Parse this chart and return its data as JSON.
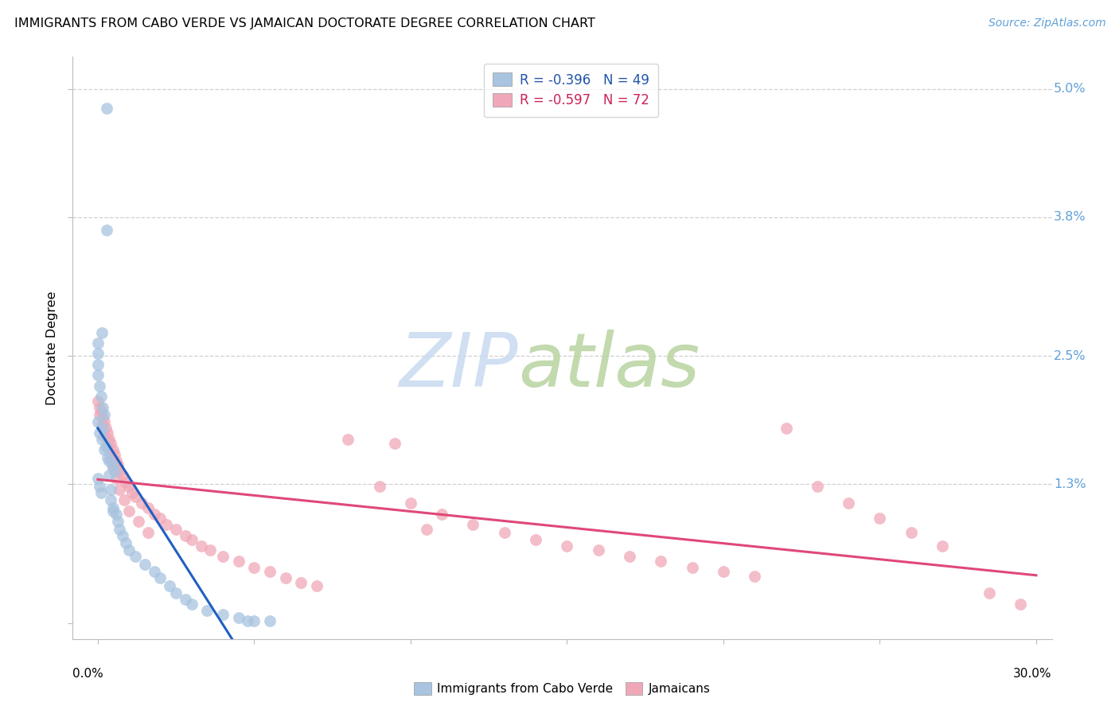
{
  "title": "IMMIGRANTS FROM CABO VERDE VS JAMAICAN DOCTORATE DEGREE CORRELATION CHART",
  "source": "Source: ZipAtlas.com",
  "ylabel": "Doctorate Degree",
  "ytick_values": [
    0.0,
    1.3,
    2.5,
    3.8,
    5.0
  ],
  "ytick_labels_right": [
    "",
    "1.3%",
    "2.5%",
    "3.8%",
    "5.0%"
  ],
  "ymax": 5.3,
  "ymin": -0.15,
  "xmax": 30.5,
  "xmin": -0.8,
  "legend_blue_text": "R = -0.396   N = 49",
  "legend_pink_text": "R = -0.597   N = 72",
  "blue_scatter_color": "#a8c4e0",
  "pink_scatter_color": "#f0a8b8",
  "blue_line_color": "#2060c0",
  "pink_line_color": "#e04878",
  "grid_color": "#d0d0d0",
  "right_label_color": "#60a0d8",
  "cabo_verde_x": [
    0.28,
    0.28,
    0.12,
    0.0,
    0.0,
    0.0,
    0.0,
    0.05,
    0.1,
    0.15,
    0.2,
    0.0,
    0.05,
    0.12,
    0.2,
    0.3,
    0.45,
    0.55,
    0.0,
    0.05,
    0.1,
    0.4,
    0.5,
    0.6,
    0.65,
    0.7,
    0.8,
    0.9,
    1.0,
    1.2,
    1.5,
    1.8,
    2.0,
    2.3,
    2.5,
    2.8,
    3.0,
    3.5,
    4.0,
    4.5,
    4.8,
    5.0,
    5.5,
    0.15,
    0.25,
    0.35,
    0.35,
    0.4,
    0.5
  ],
  "cabo_verde_y": [
    4.82,
    3.68,
    2.72,
    2.62,
    2.52,
    2.42,
    2.32,
    2.22,
    2.12,
    2.02,
    1.95,
    1.88,
    1.78,
    1.72,
    1.62,
    1.55,
    1.48,
    1.42,
    1.35,
    1.28,
    1.22,
    1.15,
    1.08,
    1.02,
    0.95,
    0.88,
    0.82,
    0.75,
    0.68,
    0.62,
    0.55,
    0.48,
    0.42,
    0.35,
    0.28,
    0.22,
    0.18,
    0.12,
    0.08,
    0.05,
    0.02,
    0.02,
    0.02,
    1.82,
    1.65,
    1.52,
    1.38,
    1.25,
    1.05
  ],
  "jamaican_x": [
    0.0,
    0.05,
    0.1,
    0.15,
    0.2,
    0.25,
    0.3,
    0.35,
    0.4,
    0.5,
    0.55,
    0.6,
    0.65,
    0.7,
    0.8,
    0.9,
    1.0,
    1.1,
    1.2,
    1.4,
    1.6,
    1.8,
    2.0,
    2.2,
    2.5,
    2.8,
    3.0,
    3.3,
    3.6,
    4.0,
    4.5,
    5.0,
    5.5,
    6.0,
    6.5,
    7.0,
    0.05,
    0.12,
    0.2,
    0.3,
    0.4,
    0.5,
    0.6,
    0.7,
    0.85,
    1.0,
    1.3,
    1.6,
    8.0,
    9.0,
    10.0,
    11.0,
    12.0,
    13.0,
    14.0,
    15.0,
    16.0,
    17.0,
    18.0,
    19.0,
    20.0,
    21.0,
    22.0,
    23.0,
    24.0,
    25.0,
    26.0,
    27.0,
    28.5,
    29.5,
    9.5,
    10.5
  ],
  "jamaican_y": [
    2.08,
    2.02,
    1.98,
    1.92,
    1.88,
    1.82,
    1.78,
    1.72,
    1.68,
    1.62,
    1.58,
    1.52,
    1.48,
    1.42,
    1.38,
    1.32,
    1.28,
    1.22,
    1.18,
    1.12,
    1.08,
    1.02,
    0.98,
    0.92,
    0.88,
    0.82,
    0.78,
    0.72,
    0.68,
    0.62,
    0.58,
    0.52,
    0.48,
    0.42,
    0.38,
    0.35,
    1.95,
    1.85,
    1.75,
    1.65,
    1.55,
    1.45,
    1.35,
    1.25,
    1.15,
    1.05,
    0.95,
    0.85,
    1.72,
    1.28,
    1.12,
    1.02,
    0.92,
    0.85,
    0.78,
    0.72,
    0.68,
    0.62,
    0.58,
    0.52,
    0.48,
    0.44,
    1.82,
    1.28,
    1.12,
    0.98,
    0.85,
    0.72,
    0.28,
    0.18,
    1.68,
    0.88
  ]
}
